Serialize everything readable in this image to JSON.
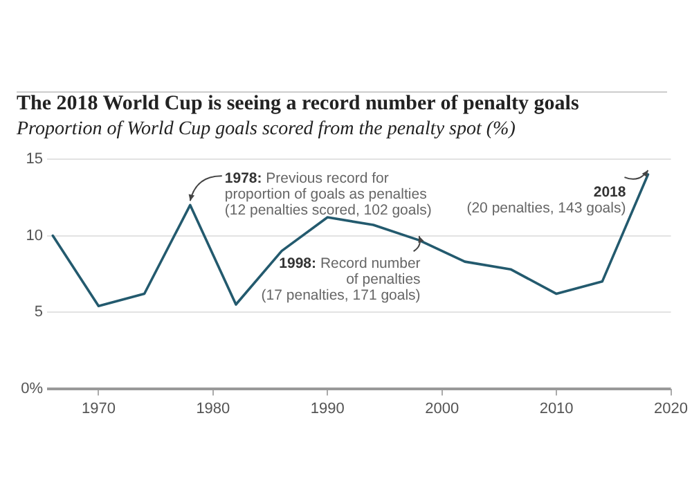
{
  "chart_data": {
    "type": "line",
    "title": "The 2018 World Cup is seeing a record number of penalty goals",
    "subtitle": "Proportion of World Cup goals scored from the penalty spot (%)",
    "x": [
      1966,
      1970,
      1974,
      1978,
      1982,
      1986,
      1990,
      1994,
      1998,
      2002,
      2006,
      2010,
      2014,
      2018
    ],
    "series": [
      {
        "color": "#235a6e",
        "values": [
          10.0,
          5.4,
          6.2,
          12.0,
          5.5,
          9.0,
          11.2,
          10.7,
          9.7,
          8.3,
          7.8,
          6.2,
          7.0,
          14.0
        ]
      }
    ],
    "xlim": [
      1965.5,
      2020
    ],
    "xticks": [
      1970,
      1980,
      1990,
      2000,
      2010,
      2020
    ],
    "ylim": [
      0,
      15
    ],
    "yticks": [
      {
        "value": 0,
        "label": "0%"
      },
      5,
      10,
      15
    ],
    "grid": "y",
    "legend": false,
    "marker": "none",
    "line_style": "solid",
    "annotations": [
      {
        "text": "1978: Previous record for\nproportion of goals as penalties\n(12 penalties scored, 102 goals)",
        "x": 1978,
        "y": 12.0
      },
      {
        "text": "1998: Record number\nof penalties\n(17 penalties, 171 goals)",
        "x": 1998,
        "y": 9.7
      },
      {
        "text": "2018\n(20 penalties, 143 goals)",
        "x": 2018,
        "y": 14.0
      }
    ]
  }
}
